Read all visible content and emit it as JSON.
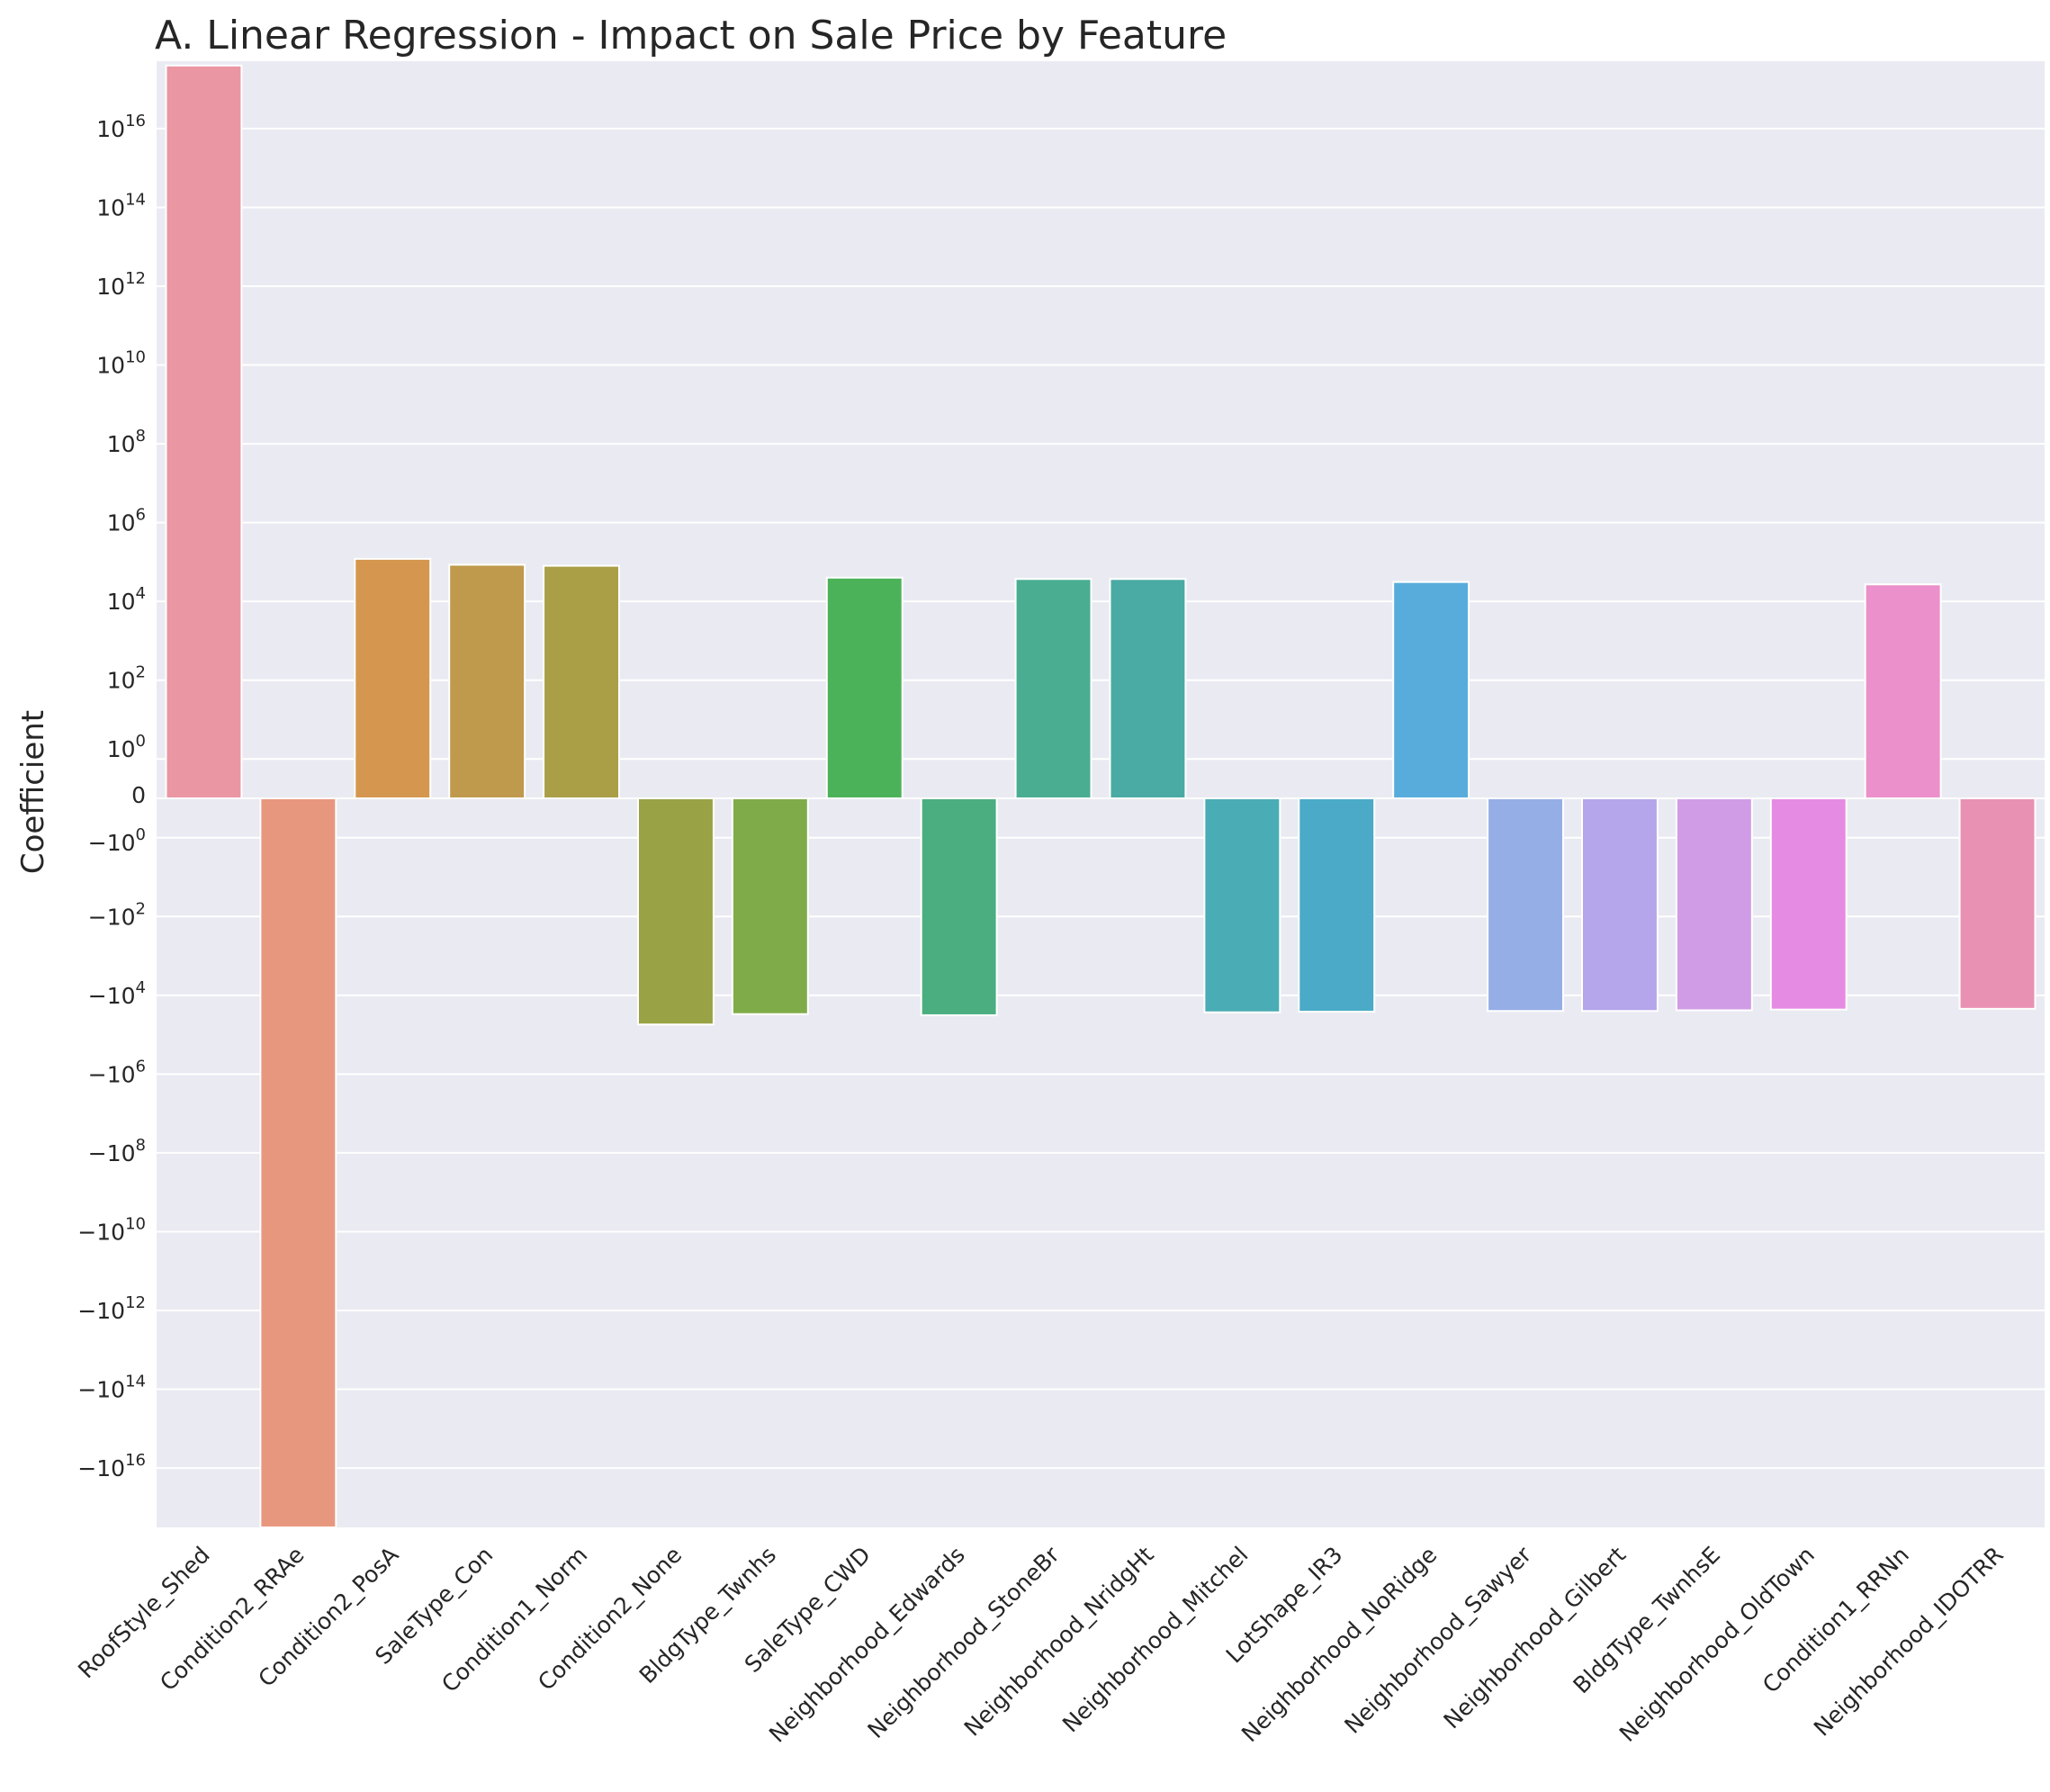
{
  "chart_data": {
    "type": "bar",
    "title": "A. Linear Regression - Impact on Sale Price by Feature",
    "xlabel": "",
    "ylabel": "Coefficient",
    "yscale": "symlog",
    "linthresh": 1,
    "ylim": [
      -4e+17,
      4e+17
    ],
    "grid": true,
    "legend": false,
    "categories": [
      "RoofStyle_Shed",
      "Condition2_RRAe",
      "Condition2_PosA",
      "SaleType_Con",
      "Condition1_Norm",
      "Condition2_None",
      "BldgType_Twnhs",
      "SaleType_CWD",
      "Neighborhood_Edwards",
      "Neighborhood_StoneBr",
      "Neighborhood_NridgHt",
      "Neighborhood_Mitchel",
      "LotShape_IR3",
      "Neighborhood_NoRidge",
      "Neighborhood_Sawyer",
      "Neighborhood_Gilbert",
      "BldgType_TwnhsE",
      "Neighborhood_OldTown",
      "Condition1_RRNn",
      "Neighborhood_IDOTRR"
    ],
    "values": [
      4e+17,
      -4e+17,
      120000,
      85000,
      80000,
      -55000,
      -30000,
      40000,
      -32000,
      37000,
      37000,
      -27000,
      -26000,
      31000,
      -25000,
      -25000,
      -24000,
      -23000,
      27000,
      -22000
    ],
    "colors": [
      "#eb96a3",
      "#e8977f",
      "#d5974f",
      "#bf9a4d",
      "#aa9e47",
      "#99a346",
      "#80ab49",
      "#4cb25a",
      "#4bae80",
      "#4aad92",
      "#4aaaa4",
      "#4aacb4",
      "#4aaac8",
      "#58acdc",
      "#96aee6",
      "#b5a5ea",
      "#d19ce6",
      "#e68be3",
      "#eb90ca",
      "#e991b3"
    ],
    "yticks": [
      {
        "label": "10",
        "exp": "16"
      },
      {
        "label": "10",
        "exp": "14"
      },
      {
        "label": "10",
        "exp": "12"
      },
      {
        "label": "10",
        "exp": "10"
      },
      {
        "label": "10",
        "exp": "8"
      },
      {
        "label": "10",
        "exp": "6"
      },
      {
        "label": "10",
        "exp": "4"
      },
      {
        "label": "10",
        "exp": "2"
      },
      {
        "label": "10",
        "exp": "0"
      },
      {
        "label": "0",
        "exp": ""
      },
      {
        "label": "−10",
        "exp": "0"
      },
      {
        "label": "−10",
        "exp": "2"
      },
      {
        "label": "−10",
        "exp": "4"
      },
      {
        "label": "−10",
        "exp": "6"
      },
      {
        "label": "−10",
        "exp": "8"
      },
      {
        "label": "−10",
        "exp": "10"
      },
      {
        "label": "−10",
        "exp": "12"
      },
      {
        "label": "−10",
        "exp": "14"
      },
      {
        "label": "−10",
        "exp": "16"
      }
    ],
    "colors_theme": {
      "background": "#eaeaf2",
      "grid": "#ffffff",
      "text": "#262626"
    }
  }
}
